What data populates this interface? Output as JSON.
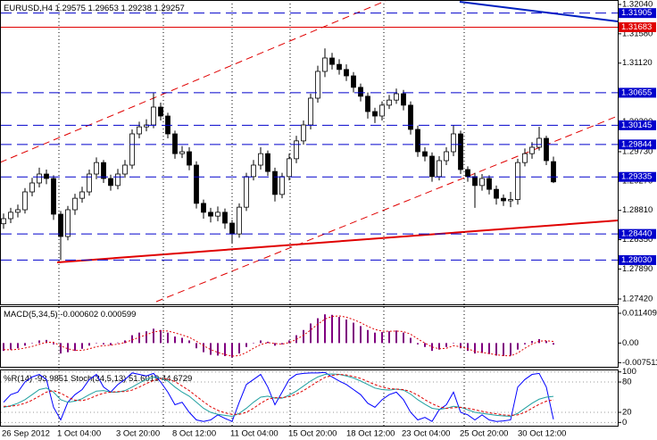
{
  "chart_data": [
    {
      "type": "candlestick",
      "title": "EURUSD,H4",
      "open": [
        1.286,
        1.2868,
        1.2878,
        1.2882,
        1.291,
        1.2924,
        1.2938,
        1.2931,
        1.2875,
        1.284,
        1.2882,
        1.29,
        1.291,
        1.2938,
        1.2956,
        1.2931,
        1.292,
        1.2938,
        1.2952,
        1.3001,
        1.3012,
        1.3015,
        1.3043,
        1.3029,
        1.3001,
        1.297,
        1.2973,
        1.2952,
        1.2892,
        1.2878,
        1.2872,
        1.2878,
        1.2861,
        1.2844,
        1.2886,
        1.2934,
        1.2952,
        1.297,
        1.2942,
        1.2906,
        1.2934,
        1.2962,
        1.299,
        1.3015,
        1.3057,
        1.3099,
        1.312,
        1.311,
        1.3102,
        1.3092,
        1.3074,
        1.306,
        1.3036,
        1.3029,
        1.3046,
        1.3054,
        1.3064,
        1.3046,
        1.3008,
        1.2973,
        1.2966,
        1.2934,
        1.2959,
        1.2973,
        1.3001,
        1.2945,
        1.2934,
        1.292,
        1.2931,
        1.2914,
        1.29,
        1.2896,
        1.2898,
        1.2956,
        1.297,
        1.298,
        1.2994,
        1.29575
      ],
      "high": [
        1.2876,
        1.2885,
        1.289,
        1.2916,
        1.2932,
        1.2948,
        1.2945,
        1.2936,
        1.288,
        1.2888,
        1.2907,
        1.2918,
        1.2945,
        1.2964,
        1.296,
        1.2937,
        1.2946,
        1.296,
        1.3008,
        1.302,
        1.3024,
        1.3065,
        1.305,
        1.3034,
        1.3006,
        1.2982,
        1.298,
        1.2958,
        1.2898,
        1.2885,
        1.2887,
        1.2884,
        1.2866,
        1.2892,
        1.294,
        1.296,
        1.298,
        1.2975,
        1.2948,
        1.294,
        1.297,
        1.2998,
        1.3022,
        1.3064,
        1.3108,
        1.3135,
        1.3128,
        1.3118,
        1.311,
        1.3098,
        1.308,
        1.3066,
        1.3042,
        1.3052,
        1.3062,
        1.3072,
        1.307,
        1.3052,
        1.3014,
        1.298,
        1.2972,
        1.2966,
        1.298,
        1.3015,
        1.3006,
        1.295,
        1.294,
        1.2938,
        1.2936,
        1.292,
        1.2906,
        1.291,
        1.2962,
        1.2978,
        1.2988,
        1.3012,
        1.2998,
        1.29653
      ],
      "low": [
        1.2852,
        1.2861,
        1.287,
        1.2876,
        1.2903,
        1.2917,
        1.2922,
        1.2866,
        1.2803,
        1.2834,
        1.2874,
        1.2893,
        1.2904,
        1.293,
        1.2924,
        1.2912,
        1.2914,
        1.2932,
        1.2946,
        1.2994,
        1.3005,
        1.301,
        1.3022,
        1.2994,
        1.2962,
        1.2963,
        1.2944,
        1.2884,
        1.2868,
        1.2862,
        1.2864,
        1.2852,
        1.283,
        1.2838,
        1.288,
        1.2928,
        1.2945,
        1.2935,
        1.2895,
        1.29,
        1.2928,
        1.2955,
        1.2984,
        1.3008,
        1.305,
        1.309,
        1.3102,
        1.3094,
        1.3084,
        1.3066,
        1.3052,
        1.3025,
        1.3018,
        1.3022,
        1.304,
        1.3048,
        1.3038,
        1.3,
        1.2965,
        1.2958,
        1.2926,
        1.2928,
        1.2952,
        1.2966,
        1.2938,
        1.2926,
        1.2885,
        1.2912,
        1.2906,
        1.289,
        1.2888,
        1.2886,
        1.289,
        1.295,
        1.2962,
        1.2975,
        1.2952,
        1.29238
      ],
      "close": [
        1.2868,
        1.2878,
        1.2882,
        1.291,
        1.2924,
        1.2938,
        1.2931,
        1.2875,
        1.284,
        1.2882,
        1.29,
        1.291,
        1.2938,
        1.2956,
        1.2931,
        1.292,
        1.2938,
        1.2952,
        1.3001,
        1.3012,
        1.3015,
        1.3043,
        1.3029,
        1.3001,
        1.297,
        1.2973,
        1.2952,
        1.2892,
        1.2878,
        1.2872,
        1.2878,
        1.2861,
        1.2844,
        1.2886,
        1.2934,
        1.2952,
        1.297,
        1.2942,
        1.2906,
        1.2934,
        1.2962,
        1.299,
        1.3015,
        1.3057,
        1.3099,
        1.312,
        1.311,
        1.3102,
        1.3092,
        1.3074,
        1.306,
        1.3036,
        1.3029,
        1.3046,
        1.3054,
        1.3064,
        1.3046,
        1.3008,
        1.2973,
        1.2966,
        1.2934,
        1.2959,
        1.2973,
        1.3001,
        1.2945,
        1.2934,
        1.292,
        1.2931,
        1.2914,
        1.29,
        1.2896,
        1.2898,
        1.2956,
        1.297,
        1.298,
        1.2994,
        1.2959,
        1.29257
      ],
      "ylim": [
        1.27336,
        1.32096
      ],
      "yticks": [
        {
          "value": 1.3204,
          "label": "1.32040"
        },
        {
          "value": 1.3158,
          "label": "1.31580"
        },
        {
          "value": 1.3112,
          "label": "1.31120"
        },
        {
          "value": 1.3066,
          "label": "1.30660"
        },
        {
          "value": 1.302,
          "label": "1.30200"
        },
        {
          "value": 1.2973,
          "label": "1.29730"
        },
        {
          "value": 1.2927,
          "label": "1.29270"
        },
        {
          "value": 1.2881,
          "label": "1.28810"
        },
        {
          "value": 1.2835,
          "label": "1.28350"
        },
        {
          "value": 1.2789,
          "label": "1.27890"
        },
        {
          "value": 1.2742,
          "label": "1.27420"
        }
      ],
      "levels": [
        {
          "value": 1.31905,
          "color": "#0000cc",
          "style": "dashed"
        },
        {
          "value": 1.31683,
          "color": "#e00000",
          "style": "solid"
        },
        {
          "value": 1.30655,
          "color": "#0000cc",
          "style": "dashed"
        },
        {
          "value": 1.30145,
          "color": "#0000cc",
          "style": "dashed"
        },
        {
          "value": 1.29844,
          "color": "#0000cc",
          "style": "dashed"
        },
        {
          "value": 1.29335,
          "color": "#0000cc",
          "style": "dashed"
        },
        {
          "value": 1.2844,
          "label": "1.28440",
          "color": "#0000cc",
          "style": "dashed"
        },
        {
          "value": 1.2803,
          "label": "1.28030",
          "color": "#0000cc",
          "style": "dashed"
        }
      ],
      "x_labels": [
        "26 Sep 2012",
        "1 Oct 04:00",
        "3 Oct 20:00",
        "8 Oct 12:00",
        "11 Oct 04:00",
        "15 Oct 20:00",
        "18 Oct 12:00",
        "23 Oct 04:00",
        "25 Oct 20:00",
        "30 Oct 12:00"
      ]
    },
    {
      "type": "macd",
      "title": "MACD(5,34,5)",
      "color": "#800080",
      "signal_color": "#e00000",
      "values": [
        -0.003,
        -0.0025,
        -0.002,
        -0.001,
        0.0,
        0.001,
        0.0012,
        -0.0005,
        -0.004,
        -0.0035,
        -0.003,
        -0.0022,
        -0.001,
        0.0,
        -0.0005,
        -0.0008,
        0.0002,
        0.001,
        0.003,
        0.004,
        0.0045,
        0.0055,
        0.005,
        0.004,
        0.0025,
        0.002,
        0.001,
        -0.002,
        -0.0035,
        -0.0045,
        -0.0048,
        -0.005,
        -0.0055,
        -0.004,
        -0.0015,
        0.0,
        0.001,
        0.0005,
        -0.001,
        -0.0005,
        0.001,
        0.003,
        0.005,
        0.0075,
        0.0095,
        0.011,
        0.0108,
        0.01,
        0.009,
        0.0078,
        0.0065,
        0.005,
        0.004,
        0.0042,
        0.0045,
        0.0048,
        0.004,
        0.002,
        -0.0005,
        -0.0015,
        -0.003,
        -0.0025,
        -0.0015,
        0.0,
        -0.002,
        -0.003,
        -0.004,
        -0.0038,
        -0.0042,
        -0.0048,
        -0.005,
        -0.0048,
        -0.0025,
        -0.0005,
        0.0008,
        0.0015,
        0.0008,
        -0.000602
      ],
      "signal": [
        -0.0025,
        -0.0026,
        -0.0024,
        -0.0019,
        -0.0013,
        -0.0005,
        0.0003,
        0.0003,
        -0.0011,
        -0.0022,
        -0.0028,
        -0.0028,
        -0.0022,
        -0.0014,
        -0.001,
        -0.0008,
        -0.0004,
        0.0002,
        0.0012,
        0.0022,
        0.0032,
        0.0042,
        0.0047,
        0.0046,
        0.0039,
        0.0031,
        0.0022,
        0.0007,
        -0.001,
        -0.0025,
        -0.0036,
        -0.0044,
        -0.005,
        -0.0048,
        -0.0036,
        -0.002,
        -0.0006,
        0.0002,
        -0.0002,
        -0.0004,
        0.0002,
        0.0014,
        0.003,
        0.005,
        0.0072,
        0.0092,
        0.0102,
        0.0104,
        0.0099,
        0.009,
        0.0078,
        0.0064,
        0.0052,
        0.0046,
        0.0045,
        0.0046,
        0.0044,
        0.0034,
        0.0016,
        0.0,
        -0.0015,
        -0.0022,
        -0.002,
        -0.001,
        -0.0014,
        -0.0022,
        -0.0032,
        -0.0036,
        -0.004,
        -0.0045,
        -0.0048,
        -0.0049,
        -0.0038,
        -0.002,
        -0.0004,
        0.0007,
        0.0009,
        0.000599
      ],
      "ylim": [
        -0.0091,
        0.0138
      ],
      "yticks": [
        0.011409,
        {
          "value": 0,
          "label": "0.00"
        },
        -0.007511
      ]
    },
    {
      "type": "oscillator",
      "title": "%R(14)",
      "title2": "Stoch(34,5,13)",
      "r_color": "#0000ff",
      "main_color": "#20a0a0",
      "signal_color": "#e00000",
      "r_values": [
        -60,
        -45,
        -40,
        -20,
        -10,
        -5,
        -15,
        -70,
        -95,
        -60,
        -45,
        -35,
        -15,
        -5,
        -30,
        -40,
        -25,
        -15,
        -2,
        -5,
        -8,
        -3,
        -20,
        -40,
        -65,
        -60,
        -80,
        -95,
        -98,
        -95,
        -85,
        -92,
        -98,
        -60,
        -25,
        -15,
        -5,
        -30,
        -65,
        -40,
        -15,
        -5,
        -3,
        -2,
        -2,
        -1,
        -10,
        -18,
        -25,
        -35,
        -45,
        -62,
        -70,
        -55,
        -45,
        -40,
        -55,
        -80,
        -95,
        -90,
        -98,
        -75,
        -65,
        -40,
        -80,
        -85,
        -95,
        -85,
        -95,
        -98,
        -97,
        -95,
        -30,
        -15,
        -5,
        -3,
        -30,
        -93.9851
      ],
      "main": [
        30,
        33,
        38,
        45,
        55,
        65,
        68,
        60,
        45,
        40,
        42,
        47,
        55,
        62,
        63,
        60,
        60,
        63,
        70,
        78,
        85,
        90,
        88,
        82,
        70,
        60,
        52,
        40,
        28,
        20,
        16,
        14,
        12,
        18,
        28,
        40,
        50,
        52,
        48,
        48,
        54,
        62,
        72,
        82,
        90,
        95,
        96,
        95,
        92,
        88,
        82,
        75,
        68,
        65,
        64,
        66,
        64,
        56,
        45,
        36,
        28,
        26,
        28,
        32,
        30,
        25,
        20,
        18,
        16,
        14,
        13,
        12,
        18,
        28,
        38,
        46,
        50,
        51.6019
      ],
      "signal": [
        32,
        32,
        34,
        38,
        44,
        52,
        60,
        63,
        58,
        50,
        44,
        43,
        47,
        53,
        58,
        60,
        61,
        61,
        64,
        70,
        77,
        83,
        87,
        86,
        81,
        72,
        63,
        52,
        41,
        31,
        24,
        19,
        16,
        16,
        20,
        28,
        38,
        46,
        49,
        49,
        51,
        56,
        63,
        72,
        81,
        89,
        93,
        95,
        94,
        91,
        87,
        81,
        75,
        70,
        67,
        66,
        65,
        61,
        54,
        45,
        37,
        31,
        28,
        29,
        30,
        28,
        25,
        22,
        19,
        17,
        15,
        14,
        15,
        20,
        28,
        36,
        42,
        44.6729
      ],
      "ylim": [
        -6.5,
        103
      ],
      "y2lim": [
        -106.5,
        3
      ],
      "yticks": [
        100,
        80,
        20,
        0
      ]
    }
  ]
}
